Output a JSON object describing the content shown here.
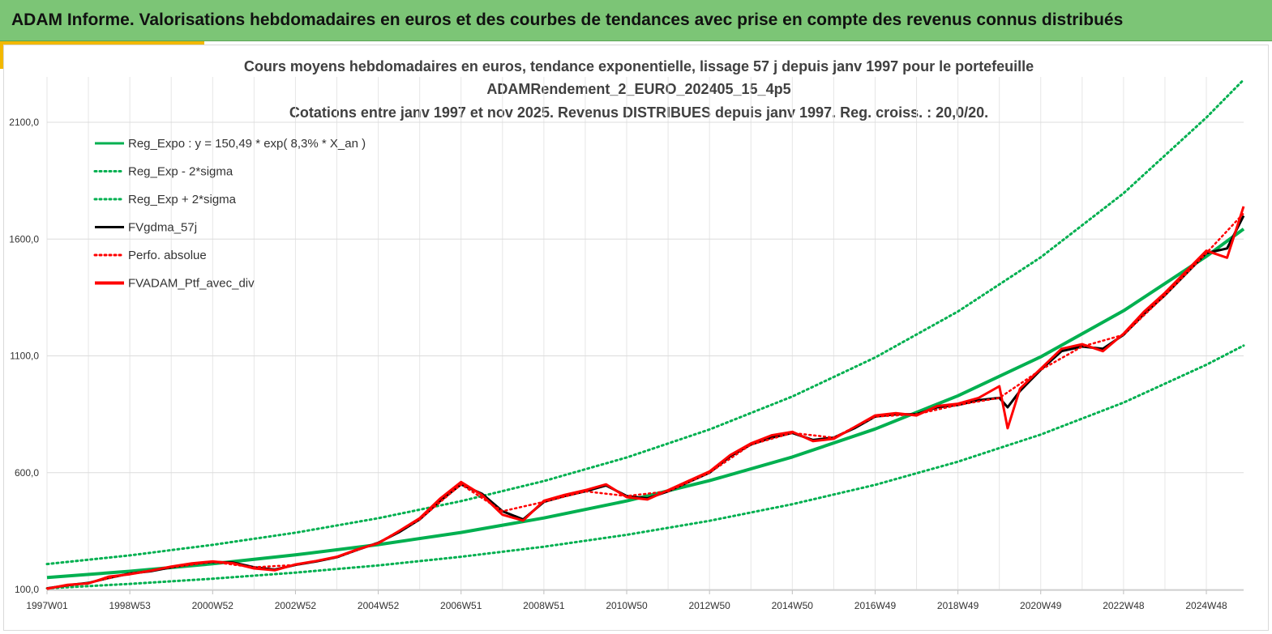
{
  "header": {
    "title": "ADAM Informe. Valorisations hebdomadaires en euros et des courbes de tendances avec prise en compte des revenus connus distribués"
  },
  "chart_data": {
    "type": "line",
    "title_lines": [
      "Cours moyens hebdomadaires  en euros, tendance exponentielle, lissage 57 j depuis janv 1997 pour le portefeuille",
      "ADAMRendement_2_EURO_202405_15_4p5",
      "Cotations entre janv 1997 et nov 2025. Revenus DISTRIBUES depuis janv 1997. Reg. croiss. : 20,0/20."
    ],
    "xlabel": "",
    "ylabel": "",
    "x_tick_labels": [
      "1997W01",
      "1998W53",
      "2000W52",
      "2002W52",
      "2004W52",
      "2006W51",
      "2008W51",
      "2010W50",
      "2012W50",
      "2014W50",
      "2016W49",
      "2018W49",
      "2020W49",
      "2022W48",
      "2024W48"
    ],
    "x_tick_years": [
      1997.0,
      1999.0,
      2001.0,
      2003.0,
      2005.0,
      2007.0,
      2009.0,
      2011.0,
      2013.0,
      2015.0,
      2017.0,
      2019.0,
      2021.0,
      2023.0,
      2025.0
    ],
    "y_ticks": [
      100,
      600,
      1100,
      1600,
      2100
    ],
    "y_tick_labels": [
      "100,0",
      "600,0",
      "1100,0",
      "1600,0",
      "2100,0"
    ],
    "ylim": [
      100,
      2100
    ],
    "xlim": [
      1997.0,
      2025.9
    ],
    "grid": true,
    "legend_position": "top-left",
    "series": [
      {
        "name": "Reg_Expo : y = 150,49 * exp( 8,3% *  X_an )",
        "color": "#00b050",
        "style": "solid",
        "x": [
          1997.0,
          1999.0,
          2001.0,
          2003.0,
          2005.0,
          2007.0,
          2009.0,
          2011.0,
          2013.0,
          2015.0,
          2017.0,
          2019.0,
          2021.0,
          2023.0,
          2025.0,
          2025.9
        ],
        "y": [
          151,
          178,
          210,
          248,
          292,
          344,
          406,
          479,
          566,
          667,
          787,
          929,
          1096,
          1293,
          1526,
          1643
        ]
      },
      {
        "name": "Reg_Exp - 2*sigma",
        "color": "#00b050",
        "style": "dotted",
        "x": [
          1997.0,
          1999.0,
          2001.0,
          2003.0,
          2005.0,
          2007.0,
          2009.0,
          2011.0,
          2013.0,
          2015.0,
          2017.0,
          2019.0,
          2021.0,
          2023.0,
          2025.0,
          2025.9
        ],
        "y": [
          105,
          124,
          146,
          172,
          203,
          240,
          283,
          334,
          394,
          465,
          548,
          647,
          763,
          900,
          1062,
          1144
        ]
      },
      {
        "name": "Reg_Exp + 2*sigma",
        "color": "#00b050",
        "style": "dotted",
        "x": [
          1997.0,
          1999.0,
          2001.0,
          2003.0,
          2005.0,
          2007.0,
          2009.0,
          2011.0,
          2013.0,
          2015.0,
          2017.0,
          2019.0,
          2021.0,
          2023.0,
          2025.0,
          2025.9
        ],
        "y": [
          209,
          246,
          291,
          343,
          405,
          478,
          564,
          665,
          785,
          926,
          1093,
          1290,
          1522,
          1796,
          2120,
          2282
        ]
      },
      {
        "name": "FVgdma_57j",
        "color": "#000000",
        "style": "solid",
        "x": [
          1997.0,
          1997.5,
          1998.0,
          1998.5,
          1999.0,
          1999.5,
          2000.0,
          2000.5,
          2001.0,
          2001.5,
          2002.0,
          2002.5,
          2003.0,
          2003.5,
          2004.0,
          2004.5,
          2005.0,
          2005.5,
          2006.0,
          2006.5,
          2007.0,
          2007.5,
          2008.0,
          2008.5,
          2009.0,
          2009.5,
          2010.0,
          2010.5,
          2011.0,
          2011.5,
          2012.0,
          2012.5,
          2013.0,
          2013.5,
          2014.0,
          2014.5,
          2015.0,
          2015.5,
          2016.0,
          2016.5,
          2017.0,
          2017.5,
          2018.0,
          2018.5,
          2019.0,
          2019.5,
          2020.0,
          2020.2,
          2020.5,
          2021.0,
          2021.5,
          2022.0,
          2022.5,
          2023.0,
          2023.5,
          2024.0,
          2024.5,
          2025.0,
          2025.5,
          2025.9
        ],
        "y": [
          105,
          118,
          128,
          150,
          168,
          178,
          195,
          210,
          218,
          215,
          195,
          185,
          205,
          220,
          238,
          270,
          300,
          345,
          400,
          480,
          550,
          510,
          435,
          400,
          475,
          500,
          520,
          545,
          500,
          490,
          520,
          560,
          600,
          670,
          720,
          750,
          770,
          740,
          750,
          790,
          840,
          850,
          850,
          880,
          890,
          910,
          920,
          880,
          950,
          1040,
          1120,
          1140,
          1130,
          1190,
          1280,
          1360,
          1450,
          1540,
          1560,
          1700
        ]
      },
      {
        "name": "Perfo. absolue",
        "color": "#ff0000",
        "style": "dotted",
        "x": [
          1997.0,
          1998.0,
          1999.0,
          2000.0,
          2001.0,
          2002.0,
          2003.0,
          2004.0,
          2005.0,
          2006.0,
          2007.0,
          2008.0,
          2009.0,
          2010.0,
          2011.0,
          2012.0,
          2013.0,
          2014.0,
          2015.0,
          2016.0,
          2017.0,
          2018.0,
          2019.0,
          2020.0,
          2021.0,
          2022.0,
          2023.0,
          2024.0,
          2025.0,
          2025.9
        ],
        "y": [
          105,
          128,
          168,
          195,
          218,
          195,
          205,
          238,
          300,
          400,
          550,
          435,
          475,
          520,
          500,
          520,
          600,
          720,
          770,
          750,
          840,
          850,
          890,
          920,
          1040,
          1140,
          1190,
          1360,
          1540,
          1710
        ]
      },
      {
        "name": "FVADAM_Ptf_avec_div",
        "color": "#ff0000",
        "style": "solid",
        "x": [
          1997.0,
          1997.5,
          1998.0,
          1998.5,
          1999.0,
          1999.5,
          2000.0,
          2000.5,
          2001.0,
          2001.5,
          2002.0,
          2002.5,
          2003.0,
          2003.5,
          2004.0,
          2004.5,
          2005.0,
          2005.5,
          2006.0,
          2006.5,
          2007.0,
          2007.5,
          2008.0,
          2008.5,
          2009.0,
          2009.5,
          2010.0,
          2010.5,
          2011.0,
          2011.5,
          2012.0,
          2012.5,
          2013.0,
          2013.5,
          2014.0,
          2014.5,
          2015.0,
          2015.5,
          2016.0,
          2016.5,
          2017.0,
          2017.5,
          2018.0,
          2018.5,
          2019.0,
          2019.5,
          2020.0,
          2020.2,
          2020.5,
          2021.0,
          2021.5,
          2022.0,
          2022.5,
          2023.0,
          2023.5,
          2024.0,
          2024.5,
          2025.0,
          2025.5,
          2025.9
        ],
        "y": [
          103,
          120,
          126,
          155,
          165,
          180,
          198,
          212,
          220,
          212,
          190,
          182,
          207,
          222,
          240,
          272,
          298,
          350,
          405,
          490,
          560,
          505,
          420,
          395,
          480,
          505,
          525,
          550,
          495,
          485,
          525,
          565,
          605,
          675,
          725,
          760,
          775,
          735,
          745,
          795,
          845,
          855,
          845,
          885,
          895,
          920,
          970,
          790,
          960,
          1045,
          1130,
          1150,
          1120,
          1195,
          1290,
          1370,
          1460,
          1550,
          1520,
          1740
        ]
      }
    ]
  }
}
